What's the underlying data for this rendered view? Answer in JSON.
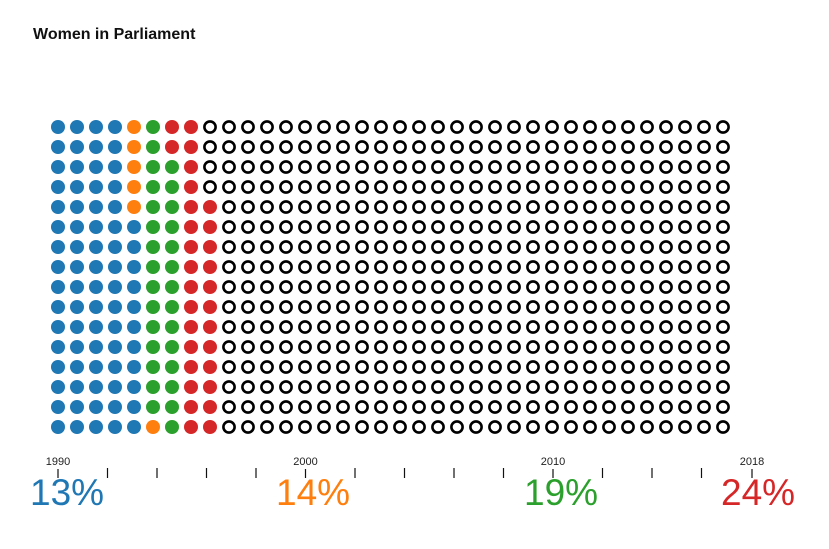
{
  "title": "Women in Parliament",
  "chart_data": {
    "type": "waffle",
    "title": "Women in Parliament",
    "grid": {
      "rows": 16,
      "columns": 36,
      "total_dots": 576
    },
    "x_axis": {
      "labeled_ticks": [
        "1990",
        "2000",
        "2010",
        "2018"
      ],
      "range": [
        1990,
        2018
      ]
    },
    "series": [
      {
        "value": "13%",
        "dots": 75,
        "color": "#1f77b4"
      },
      {
        "value": "14%",
        "dots": 6,
        "color": "#ff7f0e"
      },
      {
        "value": "19%",
        "dots": 29,
        "color": "#2ca02c"
      },
      {
        "value": "24%",
        "dots": 30,
        "color": "#d62728"
      }
    ],
    "empty_dot": {
      "fill": "#ffffff",
      "stroke": "#000000"
    }
  }
}
